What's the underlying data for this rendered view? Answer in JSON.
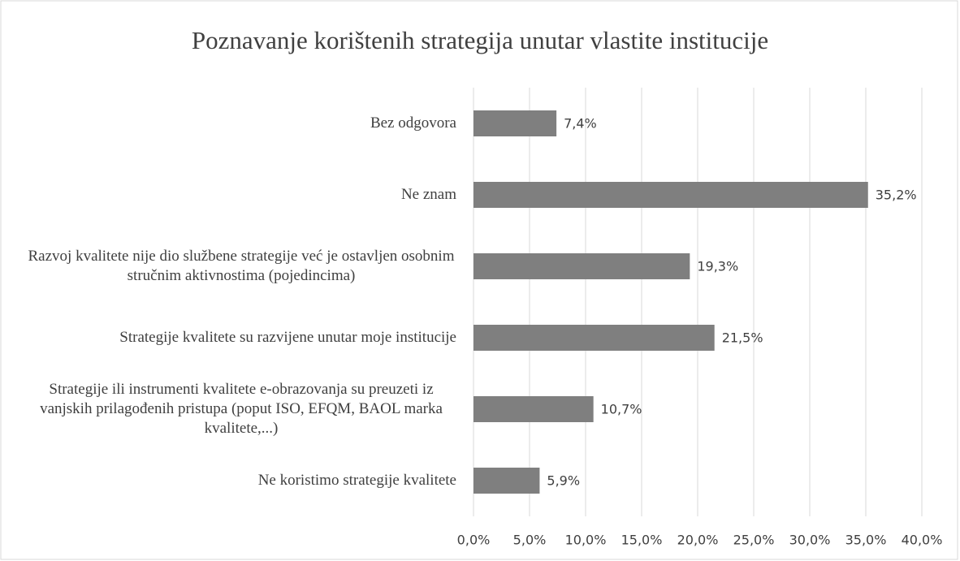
{
  "chart_data": {
    "type": "bar",
    "orientation": "horizontal",
    "title": "Poznavanje korištenih strategija unutar vlastite institucije",
    "categories": [
      "Bez odgovora",
      "Ne znam",
      "Razvoj kvalitete nije dio službene strategije već je ostavljen osobnim stručnim aktivnostima (pojedincima)",
      "Strategije kvalitete su razvijene unutar moje institucije",
      "Strategije ili instrumenti kvalitete e-obrazovanja su preuzeti iz vanjskih prilagođenih pristupa (poput ISO, EFQM, BAOL marka kvalitete,...)",
      "Ne koristimo strategije kvalitete"
    ],
    "values": [
      7.4,
      35.2,
      19.3,
      21.5,
      10.7,
      5.9
    ],
    "value_labels": [
      "7,4%",
      "35,2%",
      "19,3%",
      "21,5%",
      "10,7%",
      "5,9%"
    ],
    "color": "#7f7f7f",
    "xlim": [
      0,
      40
    ],
    "xticks": [
      {
        "value": 0,
        "label": "0,0%"
      },
      {
        "value": 5,
        "label": "5,0%"
      },
      {
        "value": 10,
        "label": "10,0%"
      },
      {
        "value": 15,
        "label": "15,0%"
      },
      {
        "value": 20,
        "label": "20,0%"
      },
      {
        "value": 25,
        "label": "25,0%"
      },
      {
        "value": 30,
        "label": "30,0%"
      },
      {
        "value": 35,
        "label": "35,0%"
      },
      {
        "value": 40,
        "label": "40,0%"
      }
    ],
    "grid": true
  }
}
